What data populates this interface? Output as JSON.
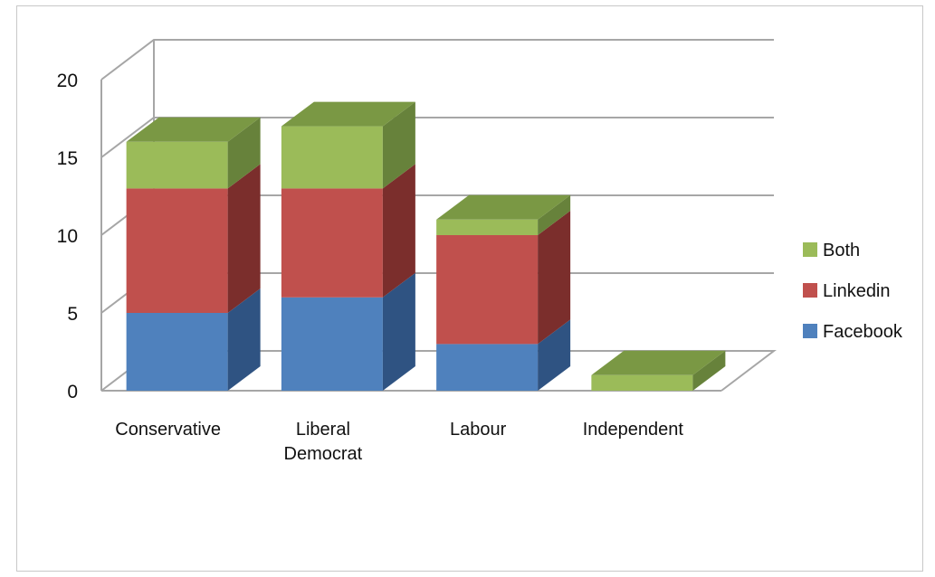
{
  "chart_data": {
    "type": "bar",
    "stacked": true,
    "style": "3d",
    "categories": [
      "Conservative",
      "Liberal Democrat",
      "Labour",
      "Independent"
    ],
    "category_lines": [
      [
        "Conservative"
      ],
      [
        "Liberal",
        "Democrat"
      ],
      [
        "Labour"
      ],
      [
        "Independent"
      ]
    ],
    "series": [
      {
        "name": "Facebook",
        "values": [
          5,
          6,
          3,
          0
        ],
        "color": "#4f81bd",
        "side": "#2f5382",
        "top": "#3d6aa3"
      },
      {
        "name": "Linkedin",
        "values": [
          8,
          7,
          7,
          0
        ],
        "color": "#c0504d",
        "side": "#7b2e2c",
        "top": "#96403d"
      },
      {
        "name": "Both",
        "values": [
          3,
          4,
          1,
          1
        ],
        "color": "#9bbb59",
        "side": "#67823b",
        "top": "#7a9844"
      }
    ],
    "yticks": [
      0,
      5,
      10,
      15,
      20
    ],
    "ylim": [
      0,
      20
    ],
    "grid": true,
    "legend": "right",
    "title": "",
    "xlabel": "",
    "ylabel": ""
  }
}
